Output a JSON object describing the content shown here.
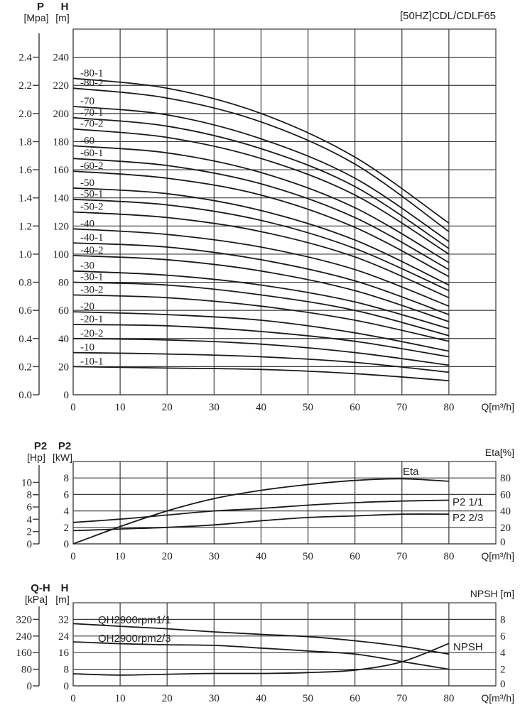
{
  "chart_data": [
    {
      "type": "line",
      "title": "[50HZ]CDL/CDLF65",
      "xlabel": "Q[m³/h]",
      "xlim": [
        0,
        90
      ],
      "xticks": [
        "0",
        "10",
        "20",
        "30",
        "40",
        "50",
        "60",
        "70",
        "80"
      ],
      "grid": true,
      "left_axis": {
        "label": "H",
        "unit": "[m]",
        "range": [
          0,
          260
        ],
        "ticks": [
          "0",
          "20",
          "40",
          "60",
          "80",
          "100",
          "120",
          "140",
          "160",
          "180",
          "200",
          "220",
          "240"
        ]
      },
      "outer_axis": {
        "label": "P",
        "unit": "[Mpa]",
        "range": [
          0,
          2.6
        ],
        "ticks": [
          "0.0",
          "0.2",
          "0.4",
          "0.6",
          "0.8",
          "1.0",
          "1.2",
          "1.4",
          "1.6",
          "1.8",
          "2.0",
          "2.2",
          "2.4"
        ]
      },
      "x": [
        0,
        20,
        40,
        60,
        80
      ],
      "series": [
        {
          "name": "-80-1",
          "values": [
            225,
            218,
            200,
            169,
            122
          ]
        },
        {
          "name": "-80-2",
          "values": [
            218,
            211,
            194,
            164,
            116
          ]
        },
        {
          "name": "-70",
          "values": [
            205,
            199,
            182,
            154,
            109
          ]
        },
        {
          "name": "-70-1",
          "values": [
            197,
            191,
            175,
            148,
            104
          ]
        },
        {
          "name": "-70-2",
          "values": [
            189,
            183,
            168,
            142,
            100
          ]
        },
        {
          "name": "-60",
          "values": [
            177,
            172,
            158,
            133,
            94
          ]
        },
        {
          "name": "-60-1",
          "values": [
            168,
            163,
            150,
            126,
            89
          ]
        },
        {
          "name": "-60-2",
          "values": [
            159,
            154,
            142,
            119,
            84
          ]
        },
        {
          "name": "-50",
          "values": [
            147,
            143,
            131,
            110,
            78
          ]
        },
        {
          "name": "-50-1",
          "values": [
            139,
            135,
            124,
            104,
            74
          ]
        },
        {
          "name": "-50-2",
          "values": [
            130,
            126,
            116,
            98,
            69
          ]
        },
        {
          "name": "-40",
          "values": [
            118,
            114,
            105,
            89,
            63
          ]
        },
        {
          "name": "-40-1",
          "values": [
            108,
            105,
            96,
            81,
            57
          ]
        },
        {
          "name": "-40-2",
          "values": [
            99,
            96,
            88,
            74,
            52
          ]
        },
        {
          "name": "-30",
          "values": [
            88,
            85,
            78,
            66,
            47
          ]
        },
        {
          "name": "-30-1",
          "values": [
            80,
            78,
            71,
            60,
            42
          ]
        },
        {
          "name": "-30-2",
          "values": [
            71,
            69,
            63,
            53,
            38
          ]
        },
        {
          "name": "-20",
          "values": [
            59,
            57,
            53,
            44,
            31
          ]
        },
        {
          "name": "-20-1",
          "values": [
            50,
            49,
            45,
            38,
            27
          ]
        },
        {
          "name": "-20-2",
          "values": [
            40,
            39,
            36,
            30,
            21
          ]
        },
        {
          "name": "-10",
          "values": [
            30,
            29,
            27,
            23,
            16
          ]
        },
        {
          "name": "-10-1",
          "values": [
            20,
            19,
            18,
            15,
            10
          ]
        }
      ]
    },
    {
      "type": "line",
      "xlabel": "Q[m³/h]",
      "xlim": [
        0,
        90
      ],
      "xticks": [
        "0",
        "10",
        "20",
        "30",
        "40",
        "50",
        "60",
        "70",
        "80"
      ],
      "grid": true,
      "left_axis": {
        "label": "P2",
        "unit": "[kW]",
        "range": [
          0,
          10
        ],
        "ticks": [
          "0",
          "2",
          "4",
          "6",
          "8"
        ]
      },
      "outer_axis": {
        "label": "P2",
        "unit": "[Hp]",
        "range": [
          0,
          13.4
        ],
        "ticks": [
          "0",
          "2",
          "4",
          "6",
          "8",
          "10"
        ]
      },
      "right_axis": {
        "label": "Eta[%]",
        "range": [
          0,
          100
        ],
        "ticks": [
          "0",
          "20",
          "40",
          "60",
          "80"
        ]
      },
      "x": [
        0,
        10,
        20,
        30,
        40,
        50,
        60,
        70,
        80
      ],
      "series": [
        {
          "name": "Eta",
          "axis": "right",
          "values": [
            0,
            21,
            40,
            55,
            65,
            72,
            77,
            79,
            76
          ]
        },
        {
          "name": "P2 1/1",
          "axis": "left",
          "values": [
            2.6,
            3.0,
            3.5,
            4.0,
            4.3,
            4.7,
            5.0,
            5.2,
            5.3
          ]
        },
        {
          "name": "P2 2/3",
          "axis": "left",
          "values": [
            1.6,
            1.8,
            2.0,
            2.3,
            2.8,
            3.2,
            3.4,
            3.6,
            3.6
          ]
        }
      ]
    },
    {
      "type": "line",
      "xlabel": "Q[m³/h]",
      "xlim": [
        0,
        90
      ],
      "xticks": [
        "0",
        "10",
        "20",
        "30",
        "40",
        "50",
        "60",
        "70",
        "80"
      ],
      "grid": true,
      "left_axis": {
        "label": "H",
        "unit": "[m]",
        "range": [
          0,
          40
        ],
        "ticks": [
          "0",
          "8",
          "16",
          "24",
          "32"
        ]
      },
      "outer_axis": {
        "label": "Q-H",
        "unit": "[kPa]",
        "range": [
          0,
          400
        ],
        "ticks": [
          "0",
          "80",
          "160",
          "240",
          "320"
        ]
      },
      "right_axis": {
        "label": "NPSH [m]",
        "range": [
          0,
          10
        ],
        "ticks": [
          "0",
          "2",
          "4",
          "6",
          "8"
        ]
      },
      "x": [
        0,
        10,
        20,
        30,
        40,
        50,
        60,
        70,
        80
      ],
      "series": [
        {
          "name": "QH2900rpm1/1",
          "axis": "left",
          "values": [
            30,
            28.7,
            27.5,
            26,
            24.8,
            23.7,
            21.7,
            19,
            15.3
          ]
        },
        {
          "name": "QH2900rpm2/3",
          "axis": "left",
          "values": [
            21.2,
            20.3,
            19.8,
            19.5,
            18.2,
            16.8,
            15.3,
            11.7,
            8
          ]
        },
        {
          "name": "NPSH",
          "axis": "right",
          "values": [
            1.45,
            1.3,
            1.4,
            1.5,
            1.5,
            1.6,
            1.9,
            2.9,
            5.1
          ]
        }
      ]
    }
  ]
}
